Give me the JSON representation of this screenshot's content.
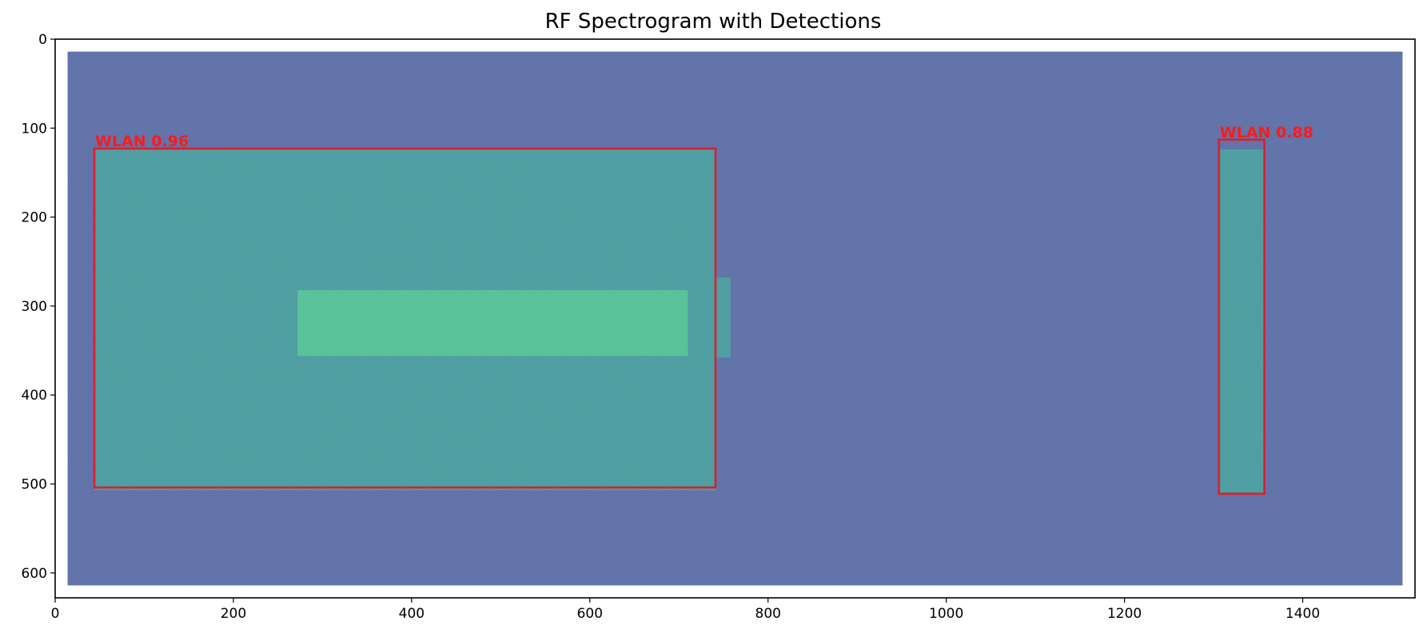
{
  "chart_data": {
    "type": "heatmap",
    "title": "RF Spectrogram with Detections",
    "xlabel": "",
    "ylabel": "",
    "xlim": [
      0,
      1526
    ],
    "ylim": [
      628,
      0
    ],
    "x_ticks": [
      0,
      200,
      400,
      600,
      800,
      1000,
      1200,
      1400
    ],
    "y_ticks": [
      0,
      100,
      200,
      300,
      400,
      500,
      600
    ],
    "grid": false,
    "image_extent": {
      "x": [
        14,
        1512
      ],
      "y": [
        14,
        614
      ]
    },
    "colormap": "viridis",
    "colors": {
      "background_noise": "#3b5296",
      "signal_fill": "#25898e",
      "signal_bright": "#33b683",
      "box_stroke": "#dc1e2e",
      "label_text": "#ff1a1a"
    },
    "signal_regions": [
      {
        "x0": 44,
        "x1": 742,
        "y0": 124,
        "y1": 507,
        "intensity": "mid"
      },
      {
        "x0": 272,
        "x1": 710,
        "y0": 282,
        "y1": 356,
        "intensity": "high"
      },
      {
        "x0": 740,
        "x1": 758,
        "y0": 268,
        "y1": 358,
        "intensity": "mid"
      },
      {
        "x0": 1306,
        "x1": 1356,
        "y0": 124,
        "y1": 510,
        "intensity": "mid"
      }
    ],
    "detections": [
      {
        "label": "WLAN 0.96",
        "class": "WLAN",
        "score": 0.96,
        "x0": 44,
        "y0": 123,
        "x1": 741,
        "y1": 504
      },
      {
        "label": "WLAN 0.88",
        "class": "WLAN",
        "score": 0.88,
        "x0": 1306,
        "y0": 113,
        "x1": 1357,
        "y1": 511
      }
    ]
  }
}
